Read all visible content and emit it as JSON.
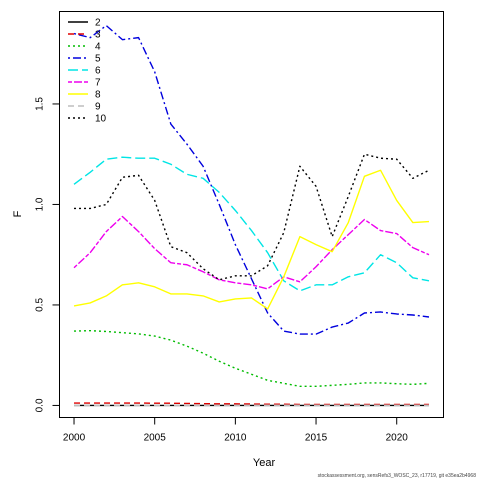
{
  "chart_data": {
    "type": "line",
    "title": "",
    "xlabel": "Year",
    "ylabel": "F",
    "xlim": [
      1999.1,
      2022.9
    ],
    "ylim": [
      -0.06,
      1.96
    ],
    "x_ticks": [
      2000,
      2005,
      2010,
      2015,
      2020
    ],
    "y_ticks": [
      0.0,
      0.5,
      1.0,
      1.5
    ],
    "y_tick_labels": [
      "0.0",
      "0.5",
      "1.0",
      "1.5"
    ],
    "grid": false,
    "legend_position": "top-left",
    "x": [
      2000,
      2001,
      2002,
      2003,
      2004,
      2005,
      2006,
      2007,
      2008,
      2009,
      2010,
      2011,
      2012,
      2013,
      2014,
      2015,
      2016,
      2017,
      2018,
      2019,
      2020,
      2021,
      2022
    ],
    "series": [
      {
        "name": "2",
        "color": "#000000",
        "dash": "solid",
        "values": [
          0.0,
          0.0,
          0.0,
          0.0,
          0.0,
          0.0,
          0.0,
          0.0,
          0.0,
          0.0,
          0.0,
          0.0,
          0.0,
          0.0,
          0.0,
          0.0,
          0.0,
          0.0,
          0.0,
          0.0,
          0.0,
          0.0,
          0.0
        ]
      },
      {
        "name": "3",
        "color": "#df0000",
        "dash": "dashed",
        "values": [
          0.012,
          0.012,
          0.012,
          0.012,
          0.012,
          0.011,
          0.011,
          0.01,
          0.009,
          0.008,
          0.008,
          0.007,
          0.006,
          0.006,
          0.005,
          0.005,
          0.005,
          0.005,
          0.005,
          0.005,
          0.005,
          0.005,
          0.005
        ]
      },
      {
        "name": "4",
        "color": "#00bb00",
        "dash": "dotted",
        "values": [
          0.37,
          0.372,
          0.368,
          0.362,
          0.356,
          0.345,
          0.325,
          0.295,
          0.26,
          0.22,
          0.185,
          0.155,
          0.125,
          0.11,
          0.095,
          0.095,
          0.1,
          0.105,
          0.112,
          0.112,
          0.108,
          0.105,
          0.11
        ]
      },
      {
        "name": "5",
        "color": "#0000dd",
        "dash": "dotdash",
        "values": [
          1.85,
          1.83,
          1.89,
          1.82,
          1.83,
          1.66,
          1.4,
          1.3,
          1.19,
          1.0,
          0.8,
          0.63,
          0.46,
          0.37,
          0.355,
          0.355,
          0.39,
          0.41,
          0.46,
          0.465,
          0.455,
          0.45,
          0.44
        ]
      },
      {
        "name": "6",
        "color": "#00e5e5",
        "dash": "longdash",
        "values": [
          1.1,
          1.16,
          1.225,
          1.235,
          1.23,
          1.23,
          1.2,
          1.15,
          1.13,
          1.06,
          0.97,
          0.87,
          0.76,
          0.62,
          0.57,
          0.6,
          0.6,
          0.64,
          0.66,
          0.75,
          0.71,
          0.635,
          0.62
        ]
      },
      {
        "name": "7",
        "color": "#ee00ee",
        "dash": "twodash",
        "values": [
          0.685,
          0.76,
          0.865,
          0.94,
          0.865,
          0.78,
          0.71,
          0.7,
          0.665,
          0.625,
          0.61,
          0.6,
          0.58,
          0.64,
          0.615,
          0.69,
          0.775,
          0.85,
          0.925,
          0.87,
          0.855,
          0.785,
          0.75
        ]
      },
      {
        "name": "8",
        "color": "#ffff00",
        "dash": "solid",
        "values": [
          0.495,
          0.51,
          0.545,
          0.6,
          0.61,
          0.59,
          0.555,
          0.555,
          0.545,
          0.515,
          0.53,
          0.535,
          0.48,
          0.64,
          0.84,
          0.8,
          0.765,
          0.91,
          1.14,
          1.17,
          1.02,
          0.91,
          0.915
        ]
      },
      {
        "name": "9",
        "color": "#bebebe",
        "dash": "dashed",
        "values": [
          0.001,
          0.001,
          0.001,
          0.001,
          0.001,
          0.001,
          0.001,
          0.001,
          0.001,
          0.001,
          0.001,
          0.001,
          0.001,
          0.001,
          0.001,
          0.001,
          0.001,
          0.001,
          0.001,
          0.001,
          0.001,
          0.001,
          0.001
        ]
      },
      {
        "name": "10",
        "color": "#000000",
        "dash": "dotted",
        "values": [
          0.98,
          0.98,
          1.0,
          1.135,
          1.145,
          1.02,
          0.79,
          0.76,
          0.68,
          0.625,
          0.645,
          0.645,
          0.695,
          0.86,
          1.19,
          1.09,
          0.84,
          1.04,
          1.25,
          1.23,
          1.225,
          1.13,
          1.17
        ]
      }
    ]
  },
  "footnote": "stockassessment.org, sensRefs3_WOSC_23, r17719, git e35ea2b4968"
}
